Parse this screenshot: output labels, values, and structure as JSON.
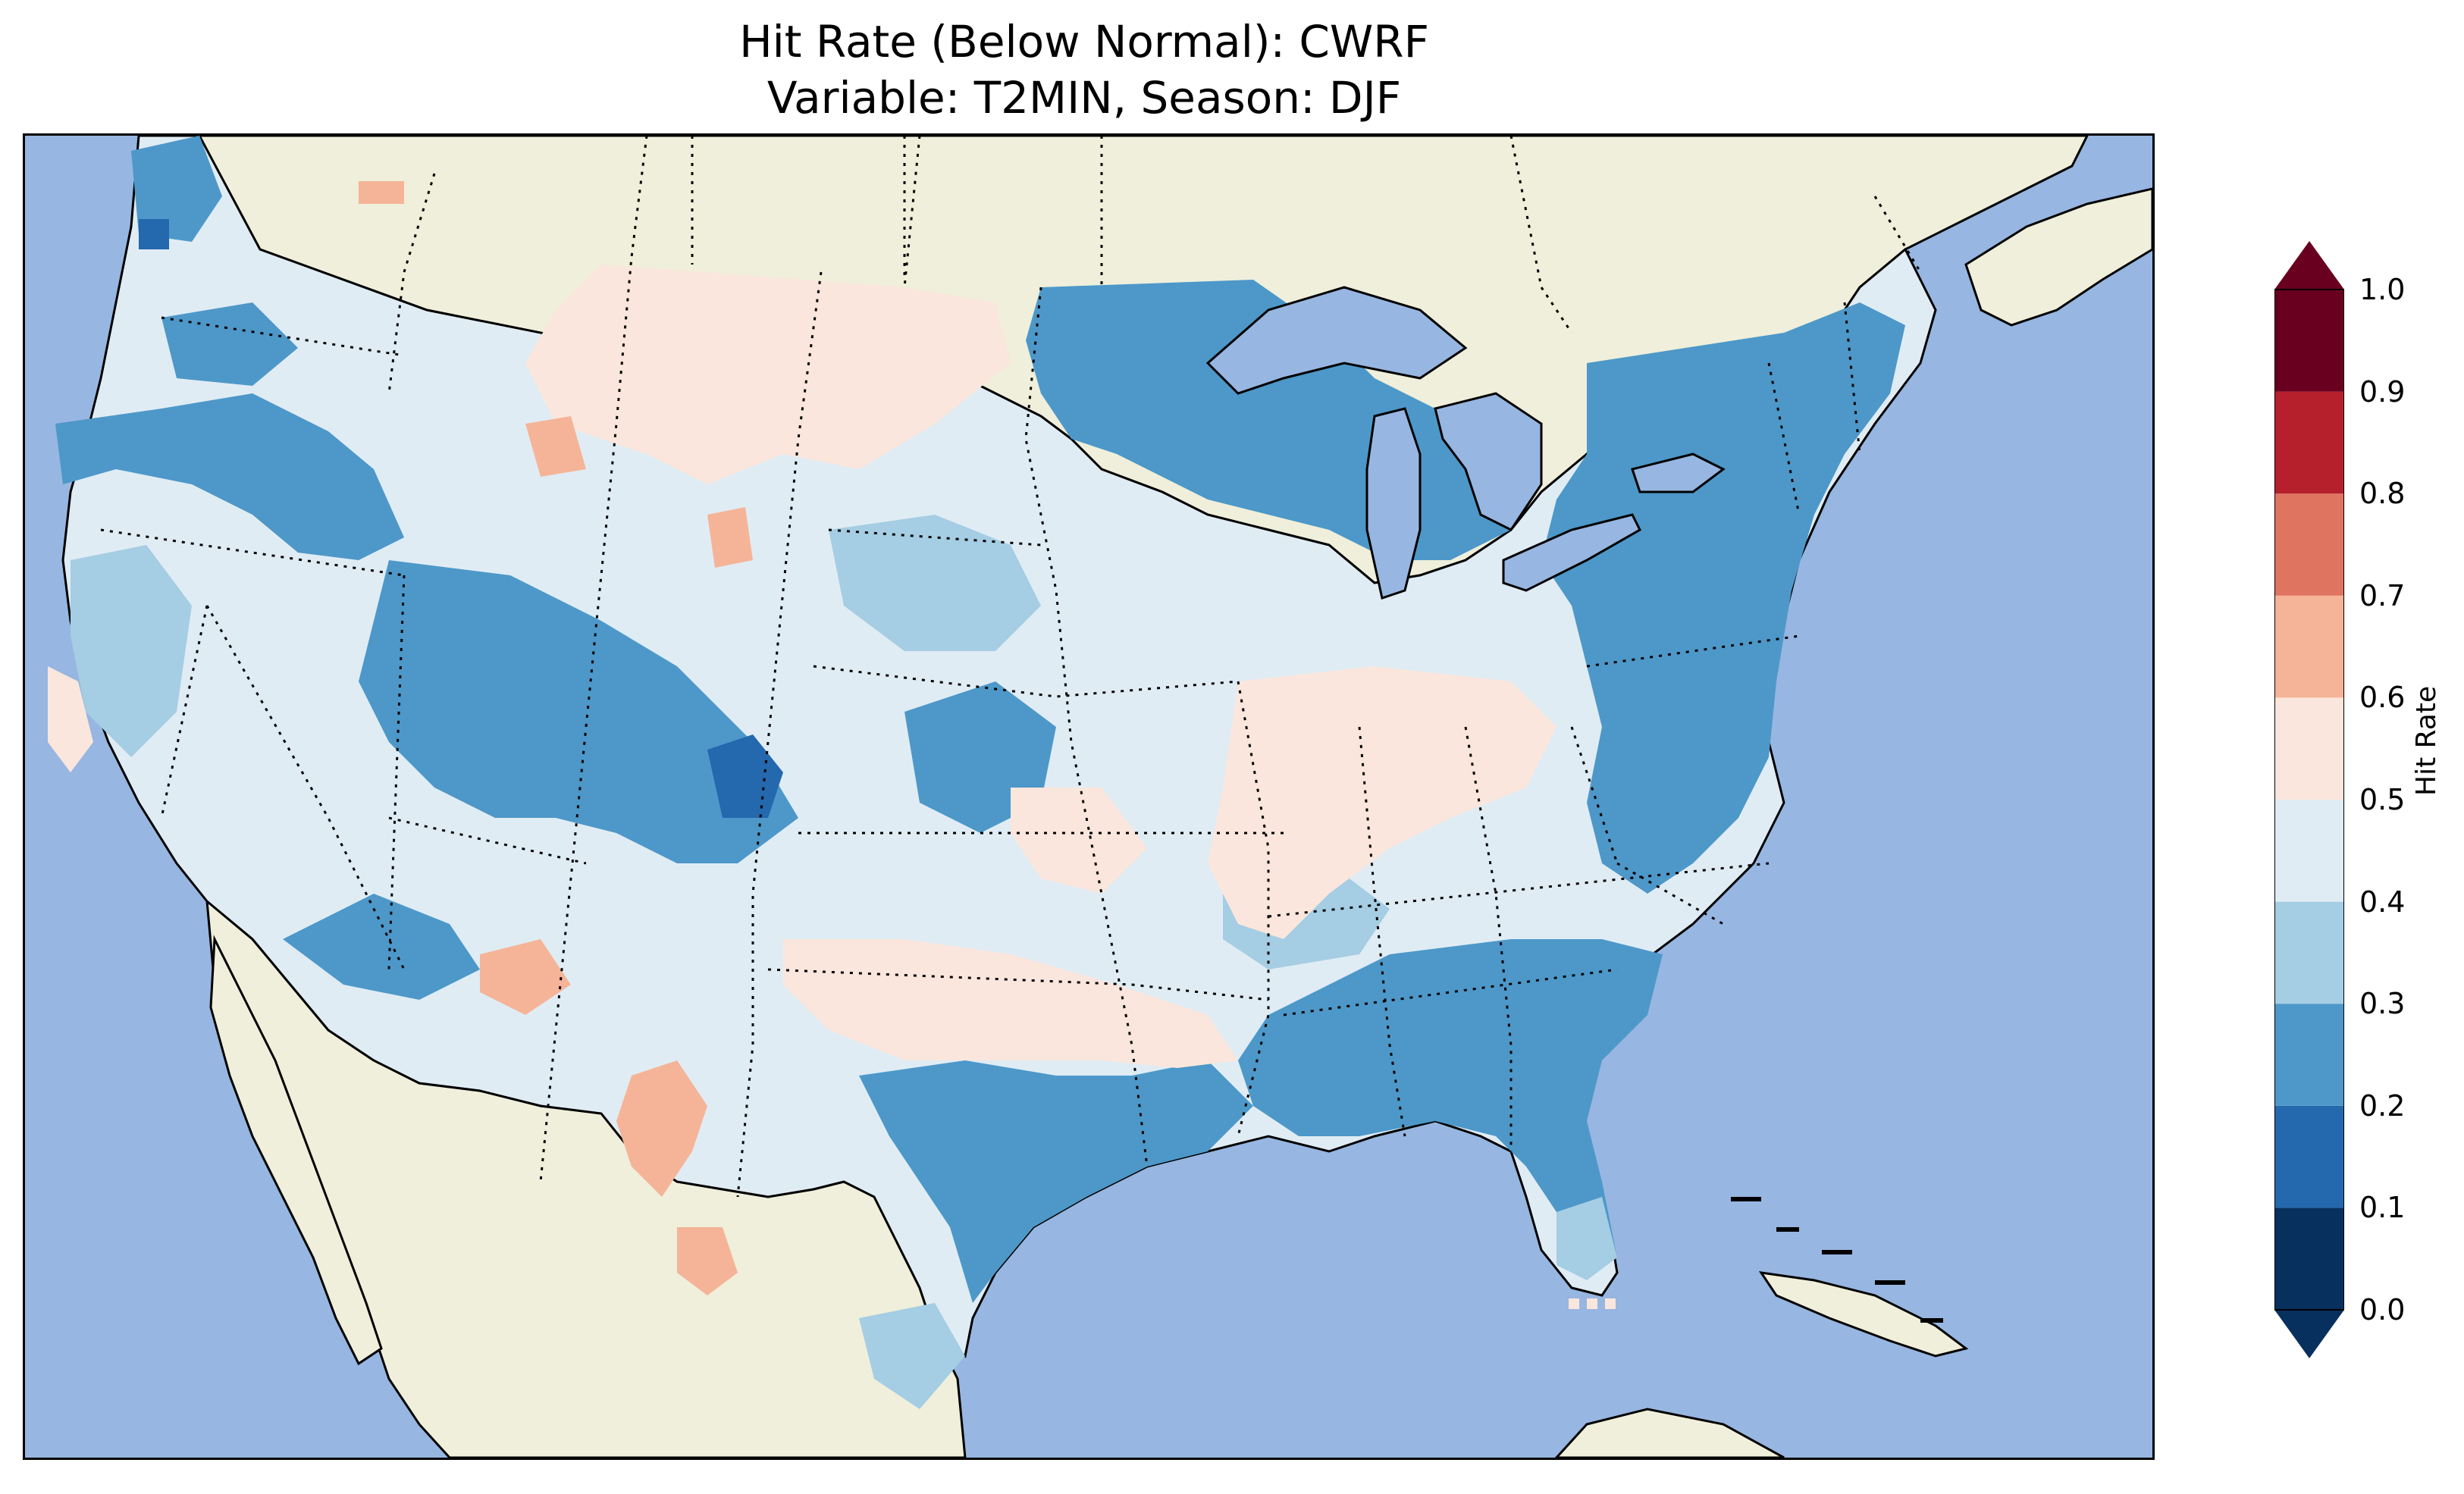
{
  "title": {
    "line1": "Hit Rate (Below Normal): CWRF",
    "line2": "Variable: T2MIN, Season: DJF"
  },
  "colors": {
    "ocean": "#97b6e1",
    "land": "#efefdb",
    "border": "#000000"
  },
  "colorbar": {
    "label": "Hit Rate",
    "ticks": [
      "0.0",
      "0.1",
      "0.2",
      "0.3",
      "0.4",
      "0.5",
      "0.6",
      "0.7",
      "0.8",
      "0.9",
      "1.0"
    ],
    "bins": [
      {
        "min": 0.0,
        "max": 0.1,
        "color": "#08305e"
      },
      {
        "min": 0.1,
        "max": 0.2,
        "color": "#2468ae"
      },
      {
        "min": 0.2,
        "max": 0.3,
        "color": "#4d98c9"
      },
      {
        "min": 0.3,
        "max": 0.4,
        "color": "#a5cde3"
      },
      {
        "min": 0.4,
        "max": 0.5,
        "color": "#e0ecf4"
      },
      {
        "min": 0.5,
        "max": 0.6,
        "color": "#fae6dc"
      },
      {
        "min": 0.6,
        "max": 0.7,
        "color": "#f5b498"
      },
      {
        "min": 0.7,
        "max": 0.8,
        "color": "#df7460"
      },
      {
        "min": 0.8,
        "max": 0.9,
        "color": "#b6202d"
      },
      {
        "min": 0.9,
        "max": 1.0,
        "color": "#690020"
      }
    ],
    "extend": "both"
  }
}
